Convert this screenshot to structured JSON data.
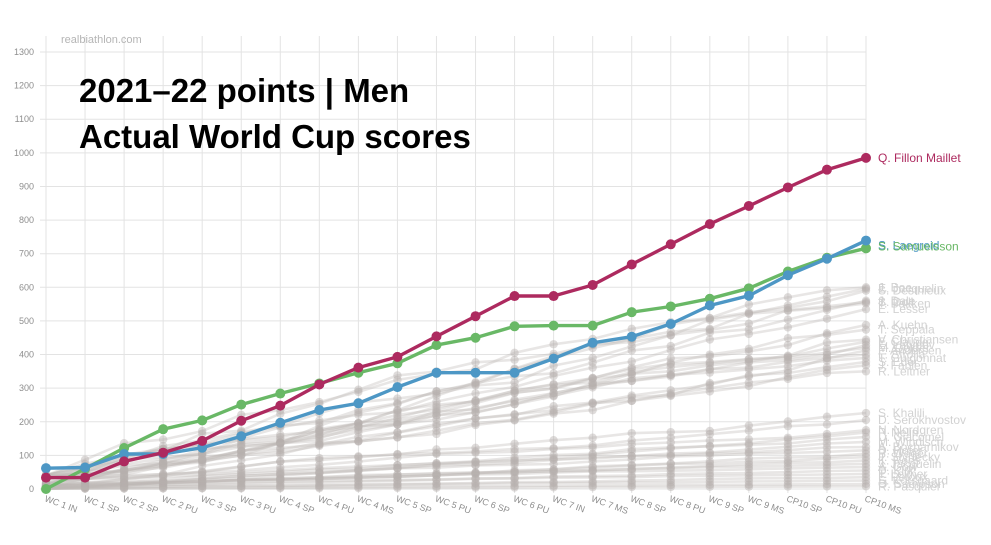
{
  "chart_data": {
    "type": "line",
    "title": "2021–22 points  |  Men",
    "subtitle": "Actual World Cup scores",
    "source_watermark": "realbiathlon.com",
    "xlabel": "",
    "ylabel": "",
    "ylim": [
      0,
      1300
    ],
    "yticks": [
      0,
      100,
      200,
      300,
      400,
      500,
      600,
      700,
      800,
      900,
      1000,
      1100,
      1200,
      1300
    ],
    "grid": true,
    "legend": "none; series names labelled at right end of lines",
    "categories": [
      "WC 1 IN",
      "WC 1 SP",
      "WC 2 SP",
      "WC 2 PU",
      "WC 3 SP",
      "WC 3 PU",
      "WC 4 SP",
      "WC 4 PU",
      "WC 4 MS",
      "WC 5 SP",
      "WC 5 PU",
      "WC 6 SP",
      "WC 6 PU",
      "WC 7 IN",
      "WC 7 MS",
      "WC 8 SP",
      "WC 8 PU",
      "WC 9 SP",
      "WC 9 MS",
      "CP10 SP",
      "CP10 PU",
      "CP10 MS"
    ],
    "series": [
      {
        "name": "Q. Fillon Maillet",
        "color": "#ad2a5f",
        "values": [
          34,
          34,
          82,
          108,
          143,
          203,
          248,
          311,
          361,
          393,
          454,
          514,
          574,
          574,
          607,
          668,
          728,
          788,
          842,
          897,
          950,
          985
        ]
      },
      {
        "name": "S. Laegreid",
        "color": "#4d97c5",
        "values": [
          62,
          64,
          104,
          104,
          123,
          157,
          197,
          235,
          255,
          303,
          346,
          346,
          346,
          388,
          435,
          453,
          491,
          546,
          575,
          636,
          685,
          739
        ]
      },
      {
        "name": "S. Samuelsson",
        "color": "#69b866",
        "values": [
          0,
          60,
          122,
          178,
          204,
          251,
          284,
          314,
          346,
          374,
          428,
          450,
          484,
          486,
          486,
          526,
          543,
          566,
          597,
          647,
          688,
          716
        ]
      }
    ],
    "background_series": [
      {
        "name": "J. Boe",
        "end": 600
      },
      {
        "name": "E. Jacquelin",
        "end": 596
      },
      {
        "name": "S. Desthieux",
        "end": 590
      },
      {
        "name": "J. Dale",
        "end": 560
      },
      {
        "name": "B. Doll",
        "end": 556
      },
      {
        "name": "T. Bakken",
        "end": 552
      },
      {
        "name": "E. Lesser",
        "end": 535
      },
      {
        "name": "A. Kuehn",
        "end": 488
      },
      {
        "name": "T. Seppala",
        "end": 474
      },
      {
        "name": "V. Christiansen",
        "end": 444
      },
      {
        "name": "F. Claude",
        "end": 438
      },
      {
        "name": "E. Latypov",
        "end": 428
      },
      {
        "name": "M. Dolder",
        "end": 420
      },
      {
        "name": "F. Andersen",
        "end": 412
      },
      {
        "name": "L. Strolia",
        "end": 400
      },
      {
        "name": "T. Guigonnat",
        "end": 390
      },
      {
        "name": "S. Eder",
        "end": 378
      },
      {
        "name": "J. Fabien",
        "end": 368
      },
      {
        "name": "R. Leitner",
        "end": 350
      },
      {
        "name": "S. Khalili",
        "end": 226
      },
      {
        "name": "D. Serokhvostov",
        "end": 205
      },
      {
        "name": "N. Nordgren",
        "end": 175
      },
      {
        "name": "P. Nelin",
        "end": 168
      },
      {
        "name": "D. Giacomel",
        "end": 155
      },
      {
        "name": "M. Windisch",
        "end": 140
      },
      {
        "name": "A. Bocharnikov",
        "end": 125
      },
      {
        "name": "D. Hofer",
        "end": 115
      },
      {
        "name": "B. Weger",
        "end": 105
      },
      {
        "name": "J. Stvrtecky",
        "end": 95
      },
      {
        "name": "K. Rees",
        "end": 85
      },
      {
        "name": "J. Jacquelin",
        "end": 75
      },
      {
        "name": "A. Gow",
        "end": 65
      },
      {
        "name": "D. Kirk",
        "end": 55
      },
      {
        "name": "T. Leitner",
        "end": 45
      },
      {
        "name": "F. Petoux",
        "end": 35
      },
      {
        "name": "S. Korsgaard",
        "end": 25
      },
      {
        "name": "O. Sampson",
        "end": 15
      },
      {
        "name": "R. Pasquier",
        "end": 8
      }
    ]
  },
  "colors": {
    "background": "#ffffff",
    "grid": "#e3e3e3",
    "axis_text": "#8e8e8e",
    "background_line": "#bdb7b5",
    "background_point": "#b6b0ae",
    "background_label": "#d2d2d2",
    "highlight": "#ad2a5f"
  }
}
